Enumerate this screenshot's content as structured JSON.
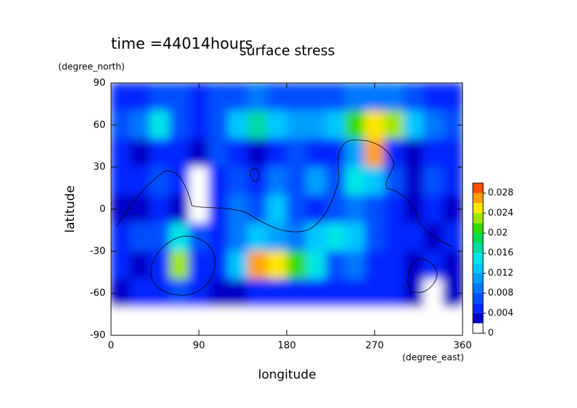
{
  "chart_data": {
    "type": "contour",
    "title": "surface stress",
    "subtitle": "time =44014hours",
    "x_label": "longitude",
    "y_label": "latitude",
    "x_unit": "(degree_east)",
    "y_unit": "(degree_north)",
    "xlim": [
      0,
      360
    ],
    "xticks": [
      0,
      90,
      180,
      270,
      360
    ],
    "ylim": [
      -90,
      90
    ],
    "yticks": [
      -90,
      -60,
      -30,
      0,
      30,
      60,
      90
    ],
    "x": [
      10,
      30,
      50,
      70,
      90,
      110,
      130,
      150,
      170,
      190,
      210,
      230,
      250,
      270,
      290,
      310,
      330,
      350
    ],
    "y": [
      80,
      60,
      40,
      20,
      0,
      -20,
      -40,
      -60,
      -80
    ],
    "z": [
      [
        0.005,
        0.005,
        0.006,
        0.006,
        0.005,
        0.006,
        0.007,
        0.008,
        0.007,
        0.006,
        0.006,
        0.007,
        0.008,
        0.009,
        0.008,
        0.006,
        0.005,
        0.005
      ],
      [
        0.006,
        0.008,
        0.014,
        0.006,
        0.005,
        0.007,
        0.012,
        0.016,
        0.012,
        0.01,
        0.01,
        0.012,
        0.02,
        0.024,
        0.022,
        0.012,
        0.008,
        0.006
      ],
      [
        0.004,
        0.003,
        0.004,
        0.005,
        0.003,
        0.006,
        0.004,
        0.002,
        0.004,
        0.006,
        0.004,
        0.004,
        0.01,
        0.026,
        0.004,
        0.002,
        0.004,
        0.005
      ],
      [
        0.004,
        0.005,
        0.006,
        0.004,
        0.001,
        0.004,
        0.006,
        0.005,
        0.008,
        0.006,
        0.01,
        0.006,
        0.014,
        0.012,
        0.006,
        0.002,
        0.006,
        0.004
      ],
      [
        0.002,
        0.003,
        0.004,
        0.002,
        0.001,
        0.005,
        0.008,
        0.006,
        0.013,
        0.006,
        0.004,
        0.006,
        0.008,
        0.006,
        0.004,
        0.003,
        0.004,
        0.002
      ],
      [
        0.004,
        0.006,
        0.007,
        0.014,
        0.006,
        0.005,
        0.008,
        0.012,
        0.01,
        0.009,
        0.012,
        0.014,
        0.012,
        0.006,
        0.005,
        0.004,
        0.003,
        0.004
      ],
      [
        0.004,
        0.003,
        0.004,
        0.022,
        0.005,
        0.004,
        0.012,
        0.026,
        0.024,
        0.02,
        0.014,
        0.006,
        0.008,
        0.004,
        0.005,
        0.002,
        0.004,
        0.003
      ],
      [
        0.003,
        0.004,
        0.005,
        0.006,
        0.005,
        0.003,
        0.002,
        0.004,
        0.004,
        0.005,
        0.004,
        0.004,
        0.005,
        0.004,
        0.004,
        0.003,
        0.001,
        0.003
      ],
      [
        0,
        0,
        0,
        0,
        0,
        0,
        0,
        0,
        0,
        0,
        0,
        0,
        0,
        0,
        0,
        0,
        0,
        0
      ]
    ],
    "levels": [
      0,
      0.002,
      0.004,
      0.006,
      0.008,
      0.01,
      0.012,
      0.014,
      0.016,
      0.018,
      0.02,
      0.022,
      0.024,
      0.026,
      0.028,
      0.03
    ],
    "colors": [
      "#ffffff",
      "#0000c8",
      "#0028ff",
      "#0050ff",
      "#0078ff",
      "#00a0ff",
      "#00c8ff",
      "#00e6e6",
      "#00dca0",
      "#00dc50",
      "#32dc00",
      "#a0e600",
      "#ffe600",
      "#ffa000",
      "#ff5000"
    ],
    "colorbar_ticks": [
      0,
      0.004,
      0.008,
      0.012,
      0.016,
      0.02,
      0.024,
      0.028
    ]
  }
}
